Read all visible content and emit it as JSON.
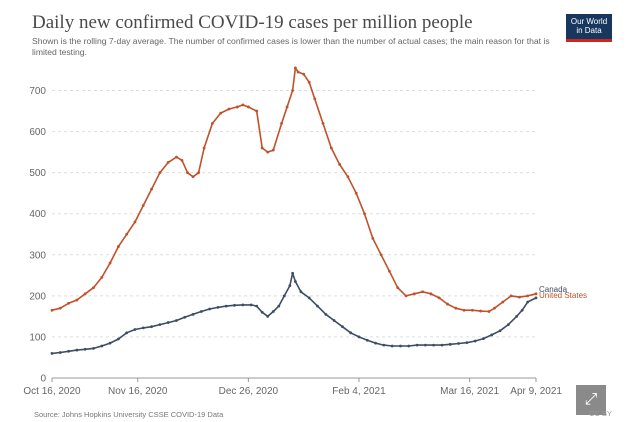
{
  "header": {
    "title": "Daily new confirmed COVID-19 cases per million people",
    "subtitle": "Shown is the rolling 7-day average. The number of confirmed cases is lower than the number of actual cases; the main reason for that is limited testing.",
    "logo_line1": "Our World",
    "logo_line2": "in Data"
  },
  "footer": {
    "source": "Source: Johns Hopkins University CSSE COVID-19 Data",
    "license": "CC BY",
    "expand_icon": "expand-icon"
  },
  "colors": {
    "canada": "#3d4d63",
    "united_states": "#c0512a",
    "grid": "#dddddd",
    "logo_bg": "#18375f",
    "logo_accent": "#ce261e"
  },
  "chart_data": {
    "type": "line",
    "title": "Daily new confirmed COVID-19 cases per million people",
    "ylim": [
      0,
      750
    ],
    "y_ticks": [
      0,
      100,
      200,
      300,
      400,
      500,
      600,
      700
    ],
    "x_ticks": [
      "Oct 16, 2020",
      "Nov 16, 2020",
      "Dec 26, 2020",
      "Feb 4, 2021",
      "Mar 16, 2021",
      "Apr 9, 2021"
    ],
    "grid": true,
    "legend": "end-of-line labels",
    "x_start": "2020-10-16",
    "x_end": "2021-04-09",
    "series": [
      {
        "name": "United States",
        "color": "#c0512a",
        "points": [
          [
            "2020-10-16",
            165
          ],
          [
            "2020-10-19",
            170
          ],
          [
            "2020-10-22",
            182
          ],
          [
            "2020-10-25",
            190
          ],
          [
            "2020-10-28",
            205
          ],
          [
            "2020-10-31",
            220
          ],
          [
            "2020-11-03",
            245
          ],
          [
            "2020-11-06",
            280
          ],
          [
            "2020-11-09",
            320
          ],
          [
            "2020-11-12",
            350
          ],
          [
            "2020-11-15",
            380
          ],
          [
            "2020-11-18",
            420
          ],
          [
            "2020-11-21",
            460
          ],
          [
            "2020-11-24",
            500
          ],
          [
            "2020-11-27",
            525
          ],
          [
            "2020-11-30",
            538
          ],
          [
            "2020-12-02",
            530
          ],
          [
            "2020-12-04",
            500
          ],
          [
            "2020-12-06",
            490
          ],
          [
            "2020-12-08",
            500
          ],
          [
            "2020-12-10",
            560
          ],
          [
            "2020-12-13",
            620
          ],
          [
            "2020-12-16",
            645
          ],
          [
            "2020-12-19",
            655
          ],
          [
            "2020-12-22",
            660
          ],
          [
            "2020-12-24",
            665
          ],
          [
            "2020-12-26",
            660
          ],
          [
            "2020-12-29",
            650
          ],
          [
            "2020-12-31",
            560
          ],
          [
            "2021-01-02",
            550
          ],
          [
            "2021-01-04",
            555
          ],
          [
            "2021-01-07",
            620
          ],
          [
            "2021-01-09",
            660
          ],
          [
            "2021-01-11",
            700
          ],
          [
            "2021-01-12",
            755
          ],
          [
            "2021-01-13",
            745
          ],
          [
            "2021-01-15",
            740
          ],
          [
            "2021-01-17",
            720
          ],
          [
            "2021-01-19",
            680
          ],
          [
            "2021-01-22",
            620
          ],
          [
            "2021-01-25",
            560
          ],
          [
            "2021-01-28",
            520
          ],
          [
            "2021-01-31",
            490
          ],
          [
            "2021-02-03",
            450
          ],
          [
            "2021-02-06",
            400
          ],
          [
            "2021-02-09",
            340
          ],
          [
            "2021-02-12",
            300
          ],
          [
            "2021-02-15",
            260
          ],
          [
            "2021-02-18",
            220
          ],
          [
            "2021-02-21",
            200
          ],
          [
            "2021-02-24",
            205
          ],
          [
            "2021-02-27",
            210
          ],
          [
            "2021-03-02",
            205
          ],
          [
            "2021-03-05",
            195
          ],
          [
            "2021-03-08",
            180
          ],
          [
            "2021-03-11",
            170
          ],
          [
            "2021-03-14",
            165
          ],
          [
            "2021-03-17",
            165
          ],
          [
            "2021-03-20",
            163
          ],
          [
            "2021-03-23",
            162
          ],
          [
            "2021-03-25",
            170
          ],
          [
            "2021-03-28",
            185
          ],
          [
            "2021-03-31",
            200
          ],
          [
            "2021-04-03",
            197
          ],
          [
            "2021-04-06",
            200
          ],
          [
            "2021-04-09",
            205
          ]
        ]
      },
      {
        "name": "Canada",
        "color": "#3d4d63",
        "points": [
          [
            "2020-10-16",
            60
          ],
          [
            "2020-10-19",
            62
          ],
          [
            "2020-10-22",
            65
          ],
          [
            "2020-10-25",
            68
          ],
          [
            "2020-10-28",
            70
          ],
          [
            "2020-10-31",
            72
          ],
          [
            "2020-11-03",
            78
          ],
          [
            "2020-11-06",
            85
          ],
          [
            "2020-11-09",
            95
          ],
          [
            "2020-11-12",
            110
          ],
          [
            "2020-11-15",
            118
          ],
          [
            "2020-11-18",
            122
          ],
          [
            "2020-11-21",
            125
          ],
          [
            "2020-11-24",
            130
          ],
          [
            "2020-11-27",
            135
          ],
          [
            "2020-11-30",
            140
          ],
          [
            "2020-12-03",
            148
          ],
          [
            "2020-12-06",
            155
          ],
          [
            "2020-12-09",
            162
          ],
          [
            "2020-12-12",
            168
          ],
          [
            "2020-12-15",
            172
          ],
          [
            "2020-12-18",
            175
          ],
          [
            "2020-12-21",
            177
          ],
          [
            "2020-12-24",
            178
          ],
          [
            "2020-12-27",
            178
          ],
          [
            "2020-12-29",
            175
          ],
          [
            "2020-12-31",
            160
          ],
          [
            "2021-01-02",
            150
          ],
          [
            "2021-01-04",
            162
          ],
          [
            "2021-01-06",
            175
          ],
          [
            "2021-01-08",
            200
          ],
          [
            "2021-01-10",
            225
          ],
          [
            "2021-01-11",
            255
          ],
          [
            "2021-01-12",
            235
          ],
          [
            "2021-01-14",
            210
          ],
          [
            "2021-01-17",
            195
          ],
          [
            "2021-01-20",
            175
          ],
          [
            "2021-01-23",
            155
          ],
          [
            "2021-01-26",
            140
          ],
          [
            "2021-01-29",
            125
          ],
          [
            "2021-02-01",
            110
          ],
          [
            "2021-02-04",
            100
          ],
          [
            "2021-02-07",
            92
          ],
          [
            "2021-02-10",
            85
          ],
          [
            "2021-02-13",
            80
          ],
          [
            "2021-02-16",
            78
          ],
          [
            "2021-02-19",
            78
          ],
          [
            "2021-02-22",
            78
          ],
          [
            "2021-02-25",
            80
          ],
          [
            "2021-02-28",
            80
          ],
          [
            "2021-03-03",
            80
          ],
          [
            "2021-03-06",
            80
          ],
          [
            "2021-03-09",
            82
          ],
          [
            "2021-03-12",
            84
          ],
          [
            "2021-03-15",
            86
          ],
          [
            "2021-03-18",
            90
          ],
          [
            "2021-03-21",
            96
          ],
          [
            "2021-03-24",
            105
          ],
          [
            "2021-03-27",
            115
          ],
          [
            "2021-03-30",
            130
          ],
          [
            "2021-04-02",
            150
          ],
          [
            "2021-04-04",
            165
          ],
          [
            "2021-04-06",
            185
          ],
          [
            "2021-04-09",
            195
          ]
        ]
      }
    ]
  }
}
